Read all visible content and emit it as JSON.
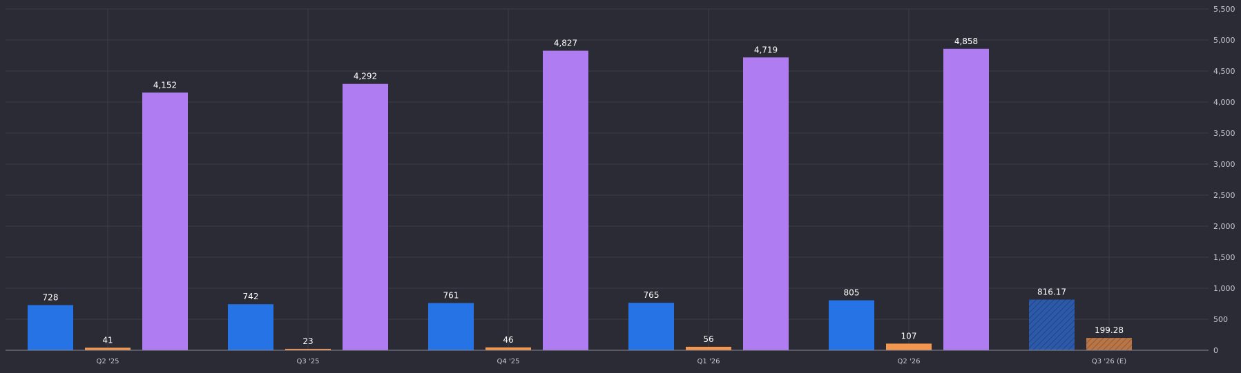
{
  "colors": {
    "background": "#2b2b36",
    "grid": "#3d3d4a",
    "axis": "#8a8a96",
    "series_blue": "#2673e6",
    "series_orange": "#f5964f",
    "series_purple": "#af7cf2",
    "estimate_blue": "#2d5aa8",
    "estimate_orange": "#b87648"
  },
  "chart_data": {
    "type": "bar",
    "categories": [
      "Q2 '25",
      "Q3 '25",
      "Q4 '25",
      "Q1 '26",
      "Q2 '26",
      "Q3 '26 (E)"
    ],
    "series": [
      {
        "color": "#2673e6",
        "values": [
          728,
          742,
          761,
          765,
          805,
          816.17
        ],
        "labels": [
          "728",
          "742",
          "761",
          "765",
          "805",
          "816.17"
        ]
      },
      {
        "color": "#f5964f",
        "values": [
          41,
          23,
          46,
          56,
          107,
          199.28
        ],
        "labels": [
          "41",
          "23",
          "46",
          "56",
          "107",
          "199.28"
        ]
      },
      {
        "color": "#af7cf2",
        "values": [
          4152,
          4292,
          4827,
          4719,
          4858,
          null
        ],
        "labels": [
          "4,152",
          "4,292",
          "4,827",
          "4,719",
          "4,858",
          ""
        ]
      }
    ],
    "estimated_categories": [
      "Q3 '26 (E)"
    ],
    "ylim": [
      0,
      5500
    ],
    "y_ticks": [
      0,
      500,
      1000,
      1500,
      2000,
      2500,
      3000,
      3500,
      4000,
      4500,
      5000,
      5500
    ],
    "y_tick_labels": [
      "0",
      "500",
      "1,000",
      "1,500",
      "2,000",
      "2,500",
      "3,000",
      "3,500",
      "4,000",
      "4,500",
      "5,000",
      "5,500"
    ],
    "y_axis_side": "right",
    "grid": true,
    "legend": "none"
  }
}
